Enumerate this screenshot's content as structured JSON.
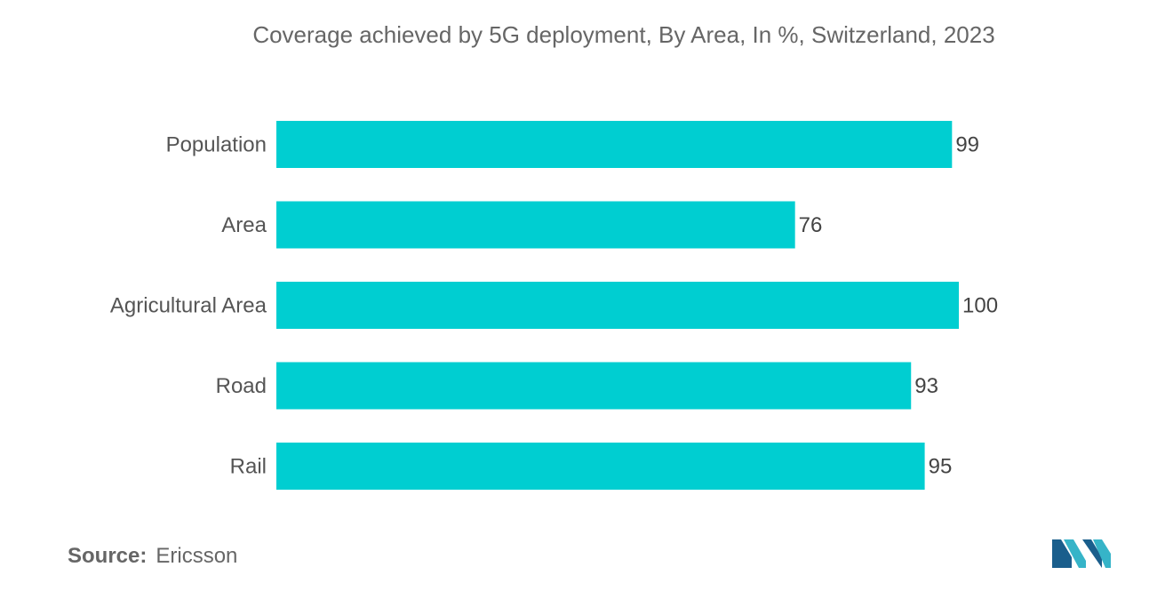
{
  "chart_data": {
    "type": "bar",
    "orientation": "horizontal",
    "title": "Coverage achieved by 5G deployment, By Area, In %, Switzerland, 2023",
    "categories": [
      "Population",
      "Area",
      "Agricultural Area",
      "Road",
      "Rail"
    ],
    "values": [
      99,
      76,
      100,
      93,
      95
    ],
    "value_labels": [
      "99",
      "76",
      "100",
      "93",
      "95"
    ],
    "xlim": [
      0,
      100
    ],
    "grid": false,
    "bar_color": "#00CED1"
  },
  "source": {
    "label": "Source:",
    "text": "Ericsson"
  },
  "colors": {
    "logo_dark": "#1A5E8C",
    "logo_light": "#36B4C8"
  }
}
